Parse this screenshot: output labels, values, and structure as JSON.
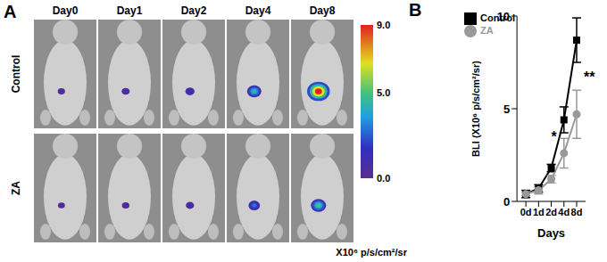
{
  "chart_data": [
    {
      "type": "image_grid",
      "panel_label": "A",
      "columns": [
        "Day0",
        "Day1",
        "Day2",
        "Day4",
        "Day8"
      ],
      "rows": [
        "Control",
        "ZA"
      ],
      "cells": [
        [
          0.8,
          1.2,
          1.8,
          4.5,
          9.0
        ],
        [
          0.6,
          0.9,
          1.3,
          3.0,
          5.0
        ]
      ],
      "colorbar": {
        "range": [
          0,
          9
        ],
        "ticks": [
          {
            "value": 9,
            "label": "9.0"
          },
          {
            "value": 5,
            "label": "5.0"
          },
          {
            "value": 0,
            "label": "0.0"
          }
        ],
        "label": "X10⁶ p/s/cm²/sr"
      }
    },
    {
      "type": "line",
      "panel_label": "B",
      "x_label": "Days",
      "y_label": "BLI (X10⁶ p/s/cm²/sr)",
      "categories": [
        "0d",
        "1d",
        "2d",
        "4d",
        "8d"
      ],
      "series": [
        {
          "name": "Control",
          "color": "#000000",
          "marker": "square",
          "values": [
            0.4,
            0.7,
            1.8,
            4.4,
            8.7
          ],
          "errors": [
            0.2,
            0.2,
            0.2,
            0.7,
            1.2
          ]
        },
        {
          "name": "ZA",
          "color": "#999999",
          "marker": "circle",
          "values": [
            0.4,
            0.6,
            1.2,
            2.6,
            4.7
          ],
          "errors": [
            0.1,
            0.2,
            0.2,
            0.8,
            1.3
          ]
        }
      ],
      "ylim": [
        0,
        10
      ],
      "yticks": [
        0,
        5,
        10
      ],
      "legend": "upper left",
      "annotations": [
        {
          "text": "*",
          "x": "4d",
          "y": 3.5
        },
        {
          "text": "**",
          "x": "8d",
          "y": 6.7
        }
      ]
    }
  ]
}
